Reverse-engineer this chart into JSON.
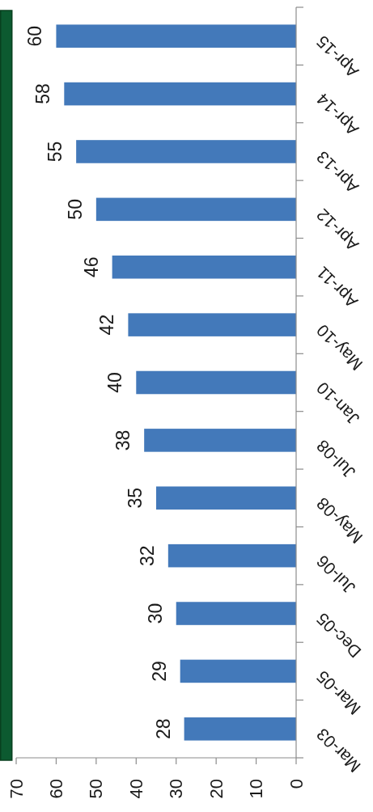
{
  "chart_data": {
    "type": "bar",
    "orientation": "horizontal",
    "categories": [
      "Apr-15",
      "Apr-14",
      "Apr-13",
      "Apr-12",
      "Apr-11",
      "May-10",
      "Jan-10",
      "Jul-08",
      "May-08",
      "Jul-06",
      "Dec-05",
      "Mar-05",
      "Mar-03"
    ],
    "values": [
      60,
      58,
      55,
      50,
      46,
      42,
      40,
      38,
      35,
      32,
      30,
      29,
      28
    ],
    "color": "#4379ba",
    "xlim": [
      70,
      0
    ],
    "xticks": [
      70,
      60,
      50,
      40,
      30,
      20,
      10,
      0
    ],
    "data_labels": true
  }
}
